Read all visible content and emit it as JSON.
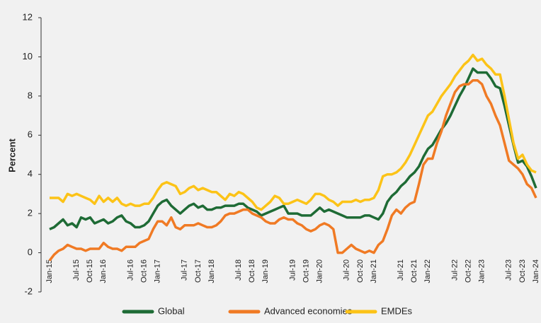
{
  "chart_data": {
    "type": "line",
    "y_label": "Percent",
    "categories": [
      "Jan-15",
      null,
      null,
      null,
      null,
      null,
      "Jul-15",
      null,
      null,
      "Oct-15",
      null,
      null,
      "Jan-16",
      null,
      null,
      null,
      null,
      null,
      "Jul-16",
      null,
      null,
      "Oct-16",
      null,
      null,
      "Jan-17",
      null,
      null,
      null,
      null,
      null,
      "Jul-17",
      null,
      null,
      "Oct-17",
      null,
      null,
      "Jan-18",
      null,
      null,
      null,
      null,
      null,
      "Jul-18",
      null,
      null,
      "Oct-18",
      null,
      null,
      "Jan-19",
      null,
      null,
      null,
      null,
      null,
      "Jul-19",
      null,
      null,
      "Oct-19",
      null,
      null,
      "Jan-20",
      null,
      null,
      null,
      null,
      null,
      "Jul-20",
      null,
      null,
      "Oct-20",
      null,
      null,
      "Jan-21",
      null,
      null,
      null,
      null,
      null,
      "Jul-21",
      null,
      null,
      "Oct-21",
      null,
      null,
      "Jan-22",
      null,
      null,
      null,
      null,
      null,
      "Jul-22",
      null,
      null,
      "Oct-22",
      null,
      null,
      "Jan-23",
      null,
      null,
      null,
      null,
      null,
      "Jul-23",
      null,
      null,
      "Oct-23",
      null,
      null,
      "Jan-24"
    ],
    "series": [
      {
        "name": "Global",
        "color": "#1e6b35",
        "values": [
          1.2,
          1.3,
          1.5,
          1.7,
          1.4,
          1.5,
          1.3,
          1.8,
          1.7,
          1.8,
          1.5,
          1.6,
          1.7,
          1.5,
          1.6,
          1.8,
          1.9,
          1.6,
          1.5,
          1.3,
          1.3,
          1.4,
          1.6,
          2.0,
          2.4,
          2.6,
          2.7,
          2.4,
          2.2,
          2.0,
          2.2,
          2.4,
          2.5,
          2.3,
          2.4,
          2.2,
          2.2,
          2.3,
          2.3,
          2.4,
          2.4,
          2.4,
          2.5,
          2.5,
          2.3,
          2.2,
          2.1,
          1.9,
          2.0,
          2.1,
          2.2,
          2.3,
          2.4,
          2.0,
          2.0,
          2.0,
          1.9,
          1.9,
          1.9,
          2.1,
          2.3,
          2.1,
          2.2,
          2.1,
          2.0,
          1.9,
          1.8,
          1.8,
          1.8,
          1.8,
          1.9,
          1.9,
          1.8,
          1.7,
          2.0,
          2.6,
          2.9,
          3.1,
          3.4,
          3.6,
          3.9,
          4.1,
          4.4,
          4.9,
          5.3,
          5.5,
          5.9,
          6.3,
          6.6,
          7.0,
          7.5,
          8.0,
          8.4,
          8.9,
          9.4,
          9.2,
          9.2,
          9.2,
          8.9,
          8.5,
          8.4,
          7.5,
          6.5,
          5.5,
          4.6,
          4.7,
          4.4,
          3.9,
          3.3
        ]
      },
      {
        "name": "Advanced economies",
        "color": "#f07a24",
        "values": [
          -0.4,
          -0.1,
          0.1,
          0.2,
          0.4,
          0.3,
          0.2,
          0.2,
          0.1,
          0.2,
          0.2,
          0.2,
          0.5,
          0.3,
          0.2,
          0.2,
          0.1,
          0.3,
          0.3,
          0.3,
          0.5,
          0.6,
          0.7,
          1.2,
          1.6,
          1.6,
          1.4,
          1.8,
          1.3,
          1.2,
          1.4,
          1.4,
          1.4,
          1.5,
          1.4,
          1.3,
          1.3,
          1.4,
          1.6,
          1.9,
          2.0,
          2.0,
          2.1,
          2.2,
          2.2,
          2.0,
          1.9,
          1.8,
          1.6,
          1.5,
          1.5,
          1.7,
          1.8,
          1.7,
          1.7,
          1.5,
          1.4,
          1.2,
          1.1,
          1.2,
          1.4,
          1.5,
          1.4,
          1.2,
          0.0,
          0.0,
          0.2,
          0.4,
          0.2,
          0.1,
          0.0,
          0.1,
          0.0,
          0.4,
          0.6,
          1.2,
          1.9,
          2.2,
          2.0,
          2.3,
          2.5,
          2.6,
          3.5,
          4.5,
          4.8,
          4.8,
          5.6,
          6.2,
          7.0,
          7.6,
          8.2,
          8.5,
          8.6,
          8.6,
          8.8,
          8.8,
          8.6,
          8.0,
          7.6,
          7.0,
          6.5,
          5.6,
          4.7,
          4.5,
          4.3,
          4.0,
          3.5,
          3.3,
          2.8
        ]
      },
      {
        "name": "EMDEs",
        "color": "#fcc317",
        "values": [
          2.8,
          2.8,
          2.8,
          2.6,
          3.0,
          2.9,
          3.0,
          2.9,
          2.8,
          2.7,
          2.5,
          2.9,
          2.6,
          2.8,
          2.6,
          2.8,
          2.5,
          2.4,
          2.5,
          2.4,
          2.4,
          2.5,
          2.5,
          2.8,
          3.2,
          3.5,
          3.6,
          3.5,
          3.4,
          3.0,
          3.1,
          3.3,
          3.4,
          3.2,
          3.3,
          3.2,
          3.1,
          3.1,
          2.9,
          2.7,
          3.0,
          2.9,
          3.1,
          3.0,
          2.8,
          2.6,
          2.3,
          2.2,
          2.4,
          2.6,
          2.9,
          2.8,
          2.5,
          2.5,
          2.6,
          2.7,
          2.6,
          2.5,
          2.7,
          3.0,
          3.0,
          2.9,
          2.7,
          2.6,
          2.4,
          2.6,
          2.6,
          2.6,
          2.7,
          2.6,
          2.7,
          2.7,
          2.8,
          3.2,
          3.9,
          4.0,
          4.0,
          4.1,
          4.3,
          4.6,
          5.0,
          5.5,
          6.0,
          6.5,
          7.0,
          7.2,
          7.6,
          8.0,
          8.3,
          8.6,
          9.0,
          9.3,
          9.6,
          9.8,
          10.1,
          9.8,
          9.9,
          9.6,
          9.4,
          9.1,
          9.1,
          8.0,
          6.8,
          5.6,
          4.8,
          5.0,
          4.5,
          4.2,
          4.1
        ]
      }
    ],
    "ylim": [
      -2,
      12
    ],
    "yticks": [
      -2,
      0,
      2,
      4,
      6,
      8,
      10,
      12
    ],
    "grid": false
  }
}
